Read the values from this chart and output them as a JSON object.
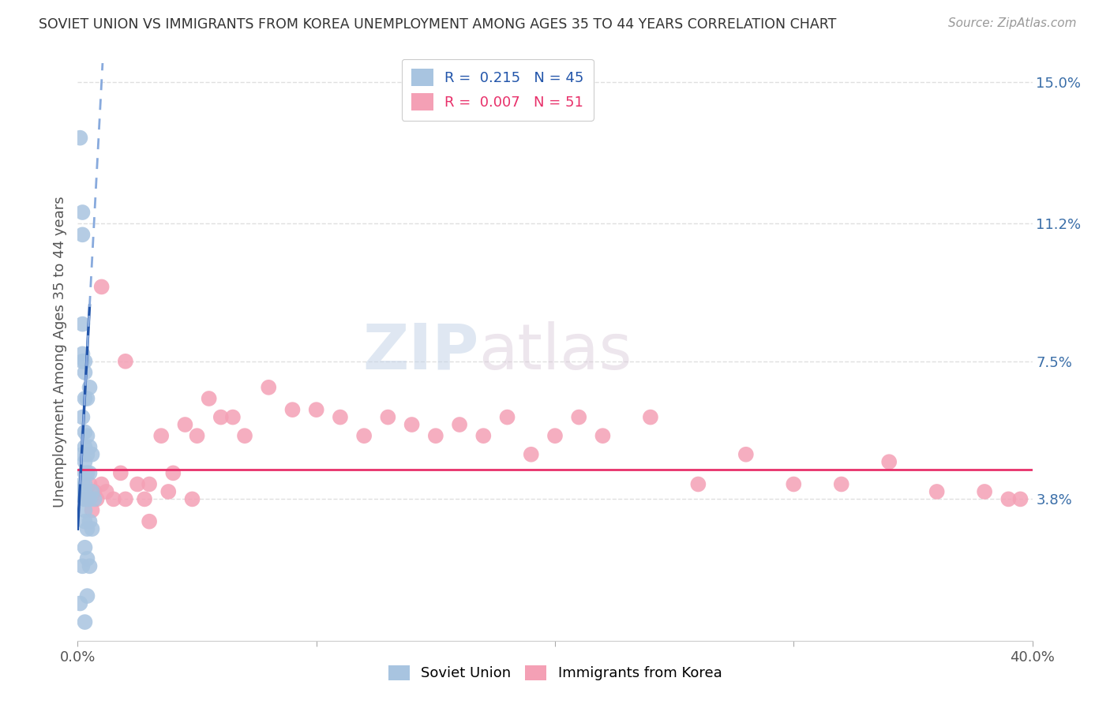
{
  "title": "SOVIET UNION VS IMMIGRANTS FROM KOREA UNEMPLOYMENT AMONG AGES 35 TO 44 YEARS CORRELATION CHART",
  "source": "Source: ZipAtlas.com",
  "ylabel": "Unemployment Among Ages 35 to 44 years",
  "xlim": [
    0.0,
    0.4
  ],
  "ylim": [
    0.0,
    0.155
  ],
  "yticks": [
    0.038,
    0.075,
    0.112,
    0.15
  ],
  "ytick_labels": [
    "3.8%",
    "7.5%",
    "11.2%",
    "15.0%"
  ],
  "xticks": [
    0.0,
    0.1,
    0.2,
    0.3,
    0.4
  ],
  "xtick_labels": [
    "0.0%",
    "",
    "",
    "",
    "40.0%"
  ],
  "soviet_R": 0.215,
  "soviet_N": 45,
  "korea_R": 0.007,
  "korea_N": 51,
  "soviet_color": "#a8c4e0",
  "korea_color": "#f4a0b5",
  "soviet_line_color": "#2255aa",
  "soviet_dash_color": "#88aadd",
  "korea_line_color": "#e8306a",
  "background_color": "#ffffff",
  "grid_color": "#e0e0e0",
  "soviet_scatter_x": [
    0.001,
    0.001,
    0.001,
    0.002,
    0.002,
    0.002,
    0.002,
    0.002,
    0.002,
    0.002,
    0.002,
    0.002,
    0.003,
    0.003,
    0.003,
    0.003,
    0.003,
    0.003,
    0.003,
    0.003,
    0.003,
    0.003,
    0.003,
    0.003,
    0.003,
    0.003,
    0.003,
    0.004,
    0.004,
    0.004,
    0.004,
    0.004,
    0.004,
    0.004,
    0.004,
    0.005,
    0.005,
    0.005,
    0.005,
    0.005,
    0.005,
    0.006,
    0.006,
    0.006,
    0.007
  ],
  "soviet_scatter_y": [
    0.135,
    0.04,
    0.01,
    0.115,
    0.109,
    0.085,
    0.077,
    0.075,
    0.06,
    0.05,
    0.042,
    0.02,
    0.075,
    0.072,
    0.065,
    0.056,
    0.052,
    0.048,
    0.045,
    0.042,
    0.04,
    0.038,
    0.038,
    0.035,
    0.032,
    0.025,
    0.005,
    0.065,
    0.055,
    0.05,
    0.045,
    0.038,
    0.03,
    0.022,
    0.012,
    0.068,
    0.052,
    0.045,
    0.038,
    0.032,
    0.02,
    0.05,
    0.04,
    0.03,
    0.038
  ],
  "korea_scatter_x": [
    0.003,
    0.005,
    0.006,
    0.007,
    0.008,
    0.01,
    0.012,
    0.015,
    0.018,
    0.02,
    0.025,
    0.028,
    0.03,
    0.035,
    0.038,
    0.04,
    0.045,
    0.048,
    0.05,
    0.055,
    0.06,
    0.065,
    0.07,
    0.08,
    0.09,
    0.1,
    0.11,
    0.12,
    0.13,
    0.14,
    0.15,
    0.16,
    0.17,
    0.18,
    0.19,
    0.2,
    0.21,
    0.22,
    0.24,
    0.26,
    0.28,
    0.3,
    0.32,
    0.34,
    0.36,
    0.38,
    0.39,
    0.01,
    0.02,
    0.03,
    0.395
  ],
  "korea_scatter_y": [
    0.038,
    0.042,
    0.035,
    0.04,
    0.038,
    0.042,
    0.04,
    0.038,
    0.045,
    0.038,
    0.042,
    0.038,
    0.042,
    0.055,
    0.04,
    0.045,
    0.058,
    0.038,
    0.055,
    0.065,
    0.06,
    0.06,
    0.055,
    0.068,
    0.062,
    0.062,
    0.06,
    0.055,
    0.06,
    0.058,
    0.055,
    0.058,
    0.055,
    0.06,
    0.05,
    0.055,
    0.06,
    0.055,
    0.06,
    0.042,
    0.05,
    0.042,
    0.042,
    0.048,
    0.04,
    0.04,
    0.038,
    0.095,
    0.075,
    0.032,
    0.038
  ],
  "korea_trend_y_intercept": 0.046,
  "korea_trend_slope": 0.0,
  "soviet_trend_slope": 12.0,
  "soviet_trend_intercept": 0.03
}
